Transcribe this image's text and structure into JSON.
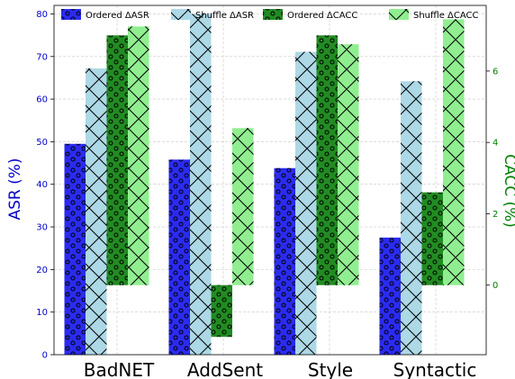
{
  "chart_data": {
    "type": "bar",
    "categories": [
      "BadNET",
      "AddSent",
      "Style",
      "Syntactic"
    ],
    "ylabel": "ASR (%)",
    "ylabel_right": "CACC (%)",
    "ylim": [
      0,
      82
    ],
    "ylim_right": [
      -1.95,
      7.84
    ],
    "yticks": [
      0,
      10,
      20,
      30,
      40,
      50,
      60,
      70,
      80
    ],
    "yticks_right": [
      0,
      2,
      4,
      6
    ],
    "grid": true,
    "legend_position": "top",
    "series": [
      {
        "name": "Ordered ΔASR",
        "axis": "left",
        "values": [
          49.5,
          45.8,
          43.8,
          27.5
        ],
        "color": "#2b2bf0",
        "hatch": "circles"
      },
      {
        "name": "Shuffle ΔASR",
        "axis": "left",
        "values": [
          67.2,
          80.0,
          71.1,
          64.2
        ],
        "color": "#add8e6",
        "hatch": "cross"
      },
      {
        "name": "Ordered ΔCACC",
        "axis": "right",
        "values": [
          7.0,
          -1.45,
          7.0,
          2.6
        ],
        "color": "#228b22",
        "hatch": "circles"
      },
      {
        "name": "Shuffle ΔCACC",
        "axis": "right",
        "values": [
          7.25,
          4.4,
          6.75,
          7.45
        ],
        "color": "#90ee90",
        "hatch": "cross"
      }
    ]
  }
}
